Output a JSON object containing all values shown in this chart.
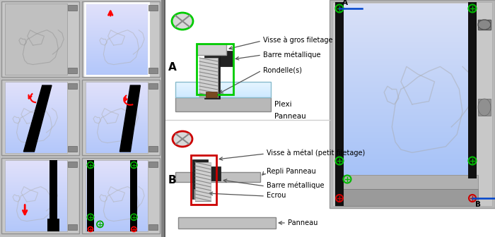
{
  "white": "#ffffff",
  "bg_left": "#c8c8c8",
  "cell_bg_gray": "#c0c0c0",
  "cell_bg_blue_light": "#d8e4f0",
  "frame_outer": "#b0b0b0",
  "frame_edge": "#888888",
  "black": "#000000",
  "gray_mid": "#a0a0a0",
  "gray_light": "#d0d0d0",
  "gray_panel": "#b8b8b8",
  "gray_dark": "#808080",
  "green_circle": "#00bb00",
  "red_color": "#cc0000",
  "blue_line": "#0055cc",
  "brown_rondelle": "#6b3a1a",
  "plexi_color": "#c8ecf8",
  "text_visse_gros": "Visse à gros filetage",
  "text_barre_metal": "Barre métallique",
  "text_rondelle": "Rondelle(s)",
  "text_plexi": "Plexi",
  "text_panneau": "Panneau",
  "text_visse_metal": "Visse à métal (petit filetage)",
  "text_repli": "Repli Panneau",
  "text_barre_metal2": "Barre métallique",
  "text_ecrou": "Ecrou",
  "text_panneau2": "Panneau",
  "figsize": [
    7.0,
    3.36
  ],
  "dpi": 100
}
